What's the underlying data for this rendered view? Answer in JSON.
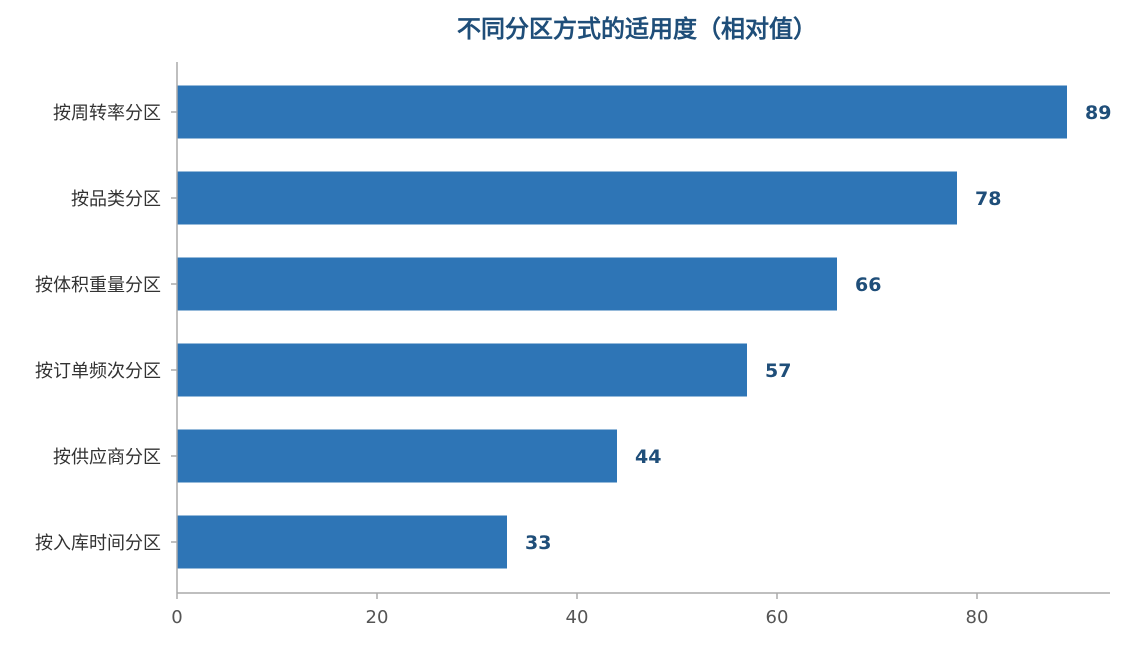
{
  "chart_data": {
    "type": "bar",
    "orientation": "horizontal",
    "title": "不同分区方式的适用度（相对值）",
    "categories": [
      "按周转率分区",
      "按品类分区",
      "按体积重量分区",
      "按订单频次分区",
      "按供应商分区",
      "按入库时间分区"
    ],
    "values": [
      89,
      78,
      66,
      57,
      44,
      33
    ],
    "xticks": [
      0,
      20,
      40,
      60,
      80
    ],
    "xlim": [
      0,
      93.3
    ],
    "bar_color": "#2e75b6",
    "label_color": "#1f4e79",
    "grid": false
  }
}
